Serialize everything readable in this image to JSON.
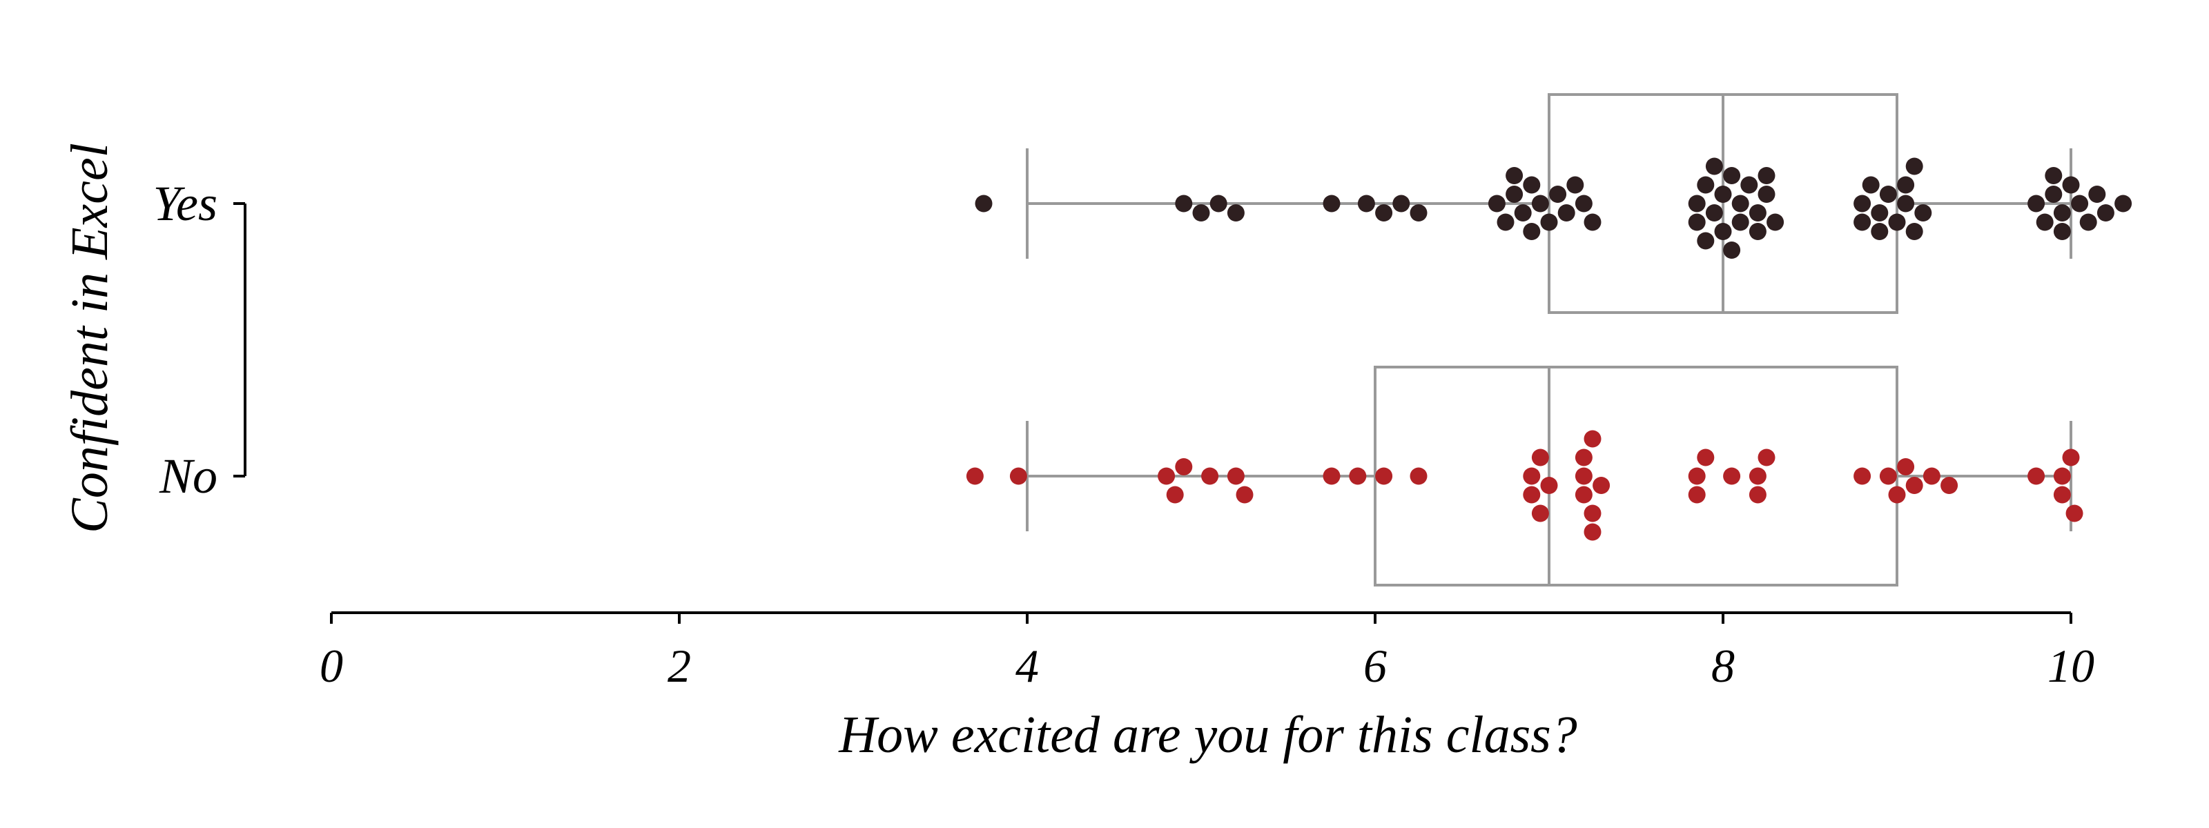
{
  "chart_data": {
    "type": "box-swarm",
    "orientation": "horizontal",
    "xlabel": "How excited are you for this class?",
    "ylabel": "Confident in Excel",
    "xlim": [
      0,
      10
    ],
    "xticks": [
      "0",
      "2",
      "4",
      "6",
      "8",
      "10"
    ],
    "categories": [
      "Yes",
      "No"
    ],
    "series": [
      {
        "name": "Yes",
        "color": "#2e1f20",
        "box": {
          "whisker_low": 4,
          "q1": 7,
          "median": 8,
          "q3": 9,
          "whisker_high": 10
        },
        "points": [
          3.75,
          4.9,
          5.0,
          5.1,
          5.2,
          5.75,
          5.95,
          6.05,
          6.15,
          6.25,
          6.7,
          6.75,
          6.8,
          6.85,
          6.9,
          6.95,
          7.0,
          7.05,
          7.1,
          7.15,
          7.2,
          7.25,
          6.8,
          6.9,
          7.85,
          7.9,
          7.95,
          8.0,
          8.05,
          8.1,
          8.15,
          8.2,
          8.25,
          7.85,
          7.95,
          8.05,
          8.1,
          8.0,
          7.9,
          8.2,
          8.25,
          8.3,
          8.8,
          8.85,
          8.9,
          8.95,
          9.05,
          9.1,
          9.15,
          8.8,
          9.0,
          9.1,
          8.9,
          9.05,
          9.8,
          9.85,
          9.9,
          9.95,
          10.0,
          10.05,
          10.1,
          10.15,
          10.2,
          10.3,
          9.9,
          9.95
        ]
      },
      {
        "name": "No",
        "color": "#b22226",
        "box": {
          "whisker_low": 4,
          "q1": 6,
          "median": 7,
          "q3": 9,
          "whisker_high": 10
        },
        "points": [
          3.7,
          3.95,
          4.8,
          4.85,
          4.9,
          5.05,
          5.2,
          5.25,
          5.75,
          5.9,
          6.05,
          6.25,
          6.9,
          6.95,
          7.0,
          6.9,
          6.95,
          7.2,
          7.25,
          7.2,
          7.3,
          7.25,
          7.2,
          7.25,
          7.85,
          7.9,
          8.05,
          8.2,
          8.25,
          7.85,
          8.2,
          8.8,
          8.95,
          9.05,
          9.2,
          9.0,
          9.1,
          9.3,
          9.8,
          9.95,
          10.0,
          9.95,
          10.02
        ]
      }
    ],
    "grid": false,
    "legend": "none"
  }
}
